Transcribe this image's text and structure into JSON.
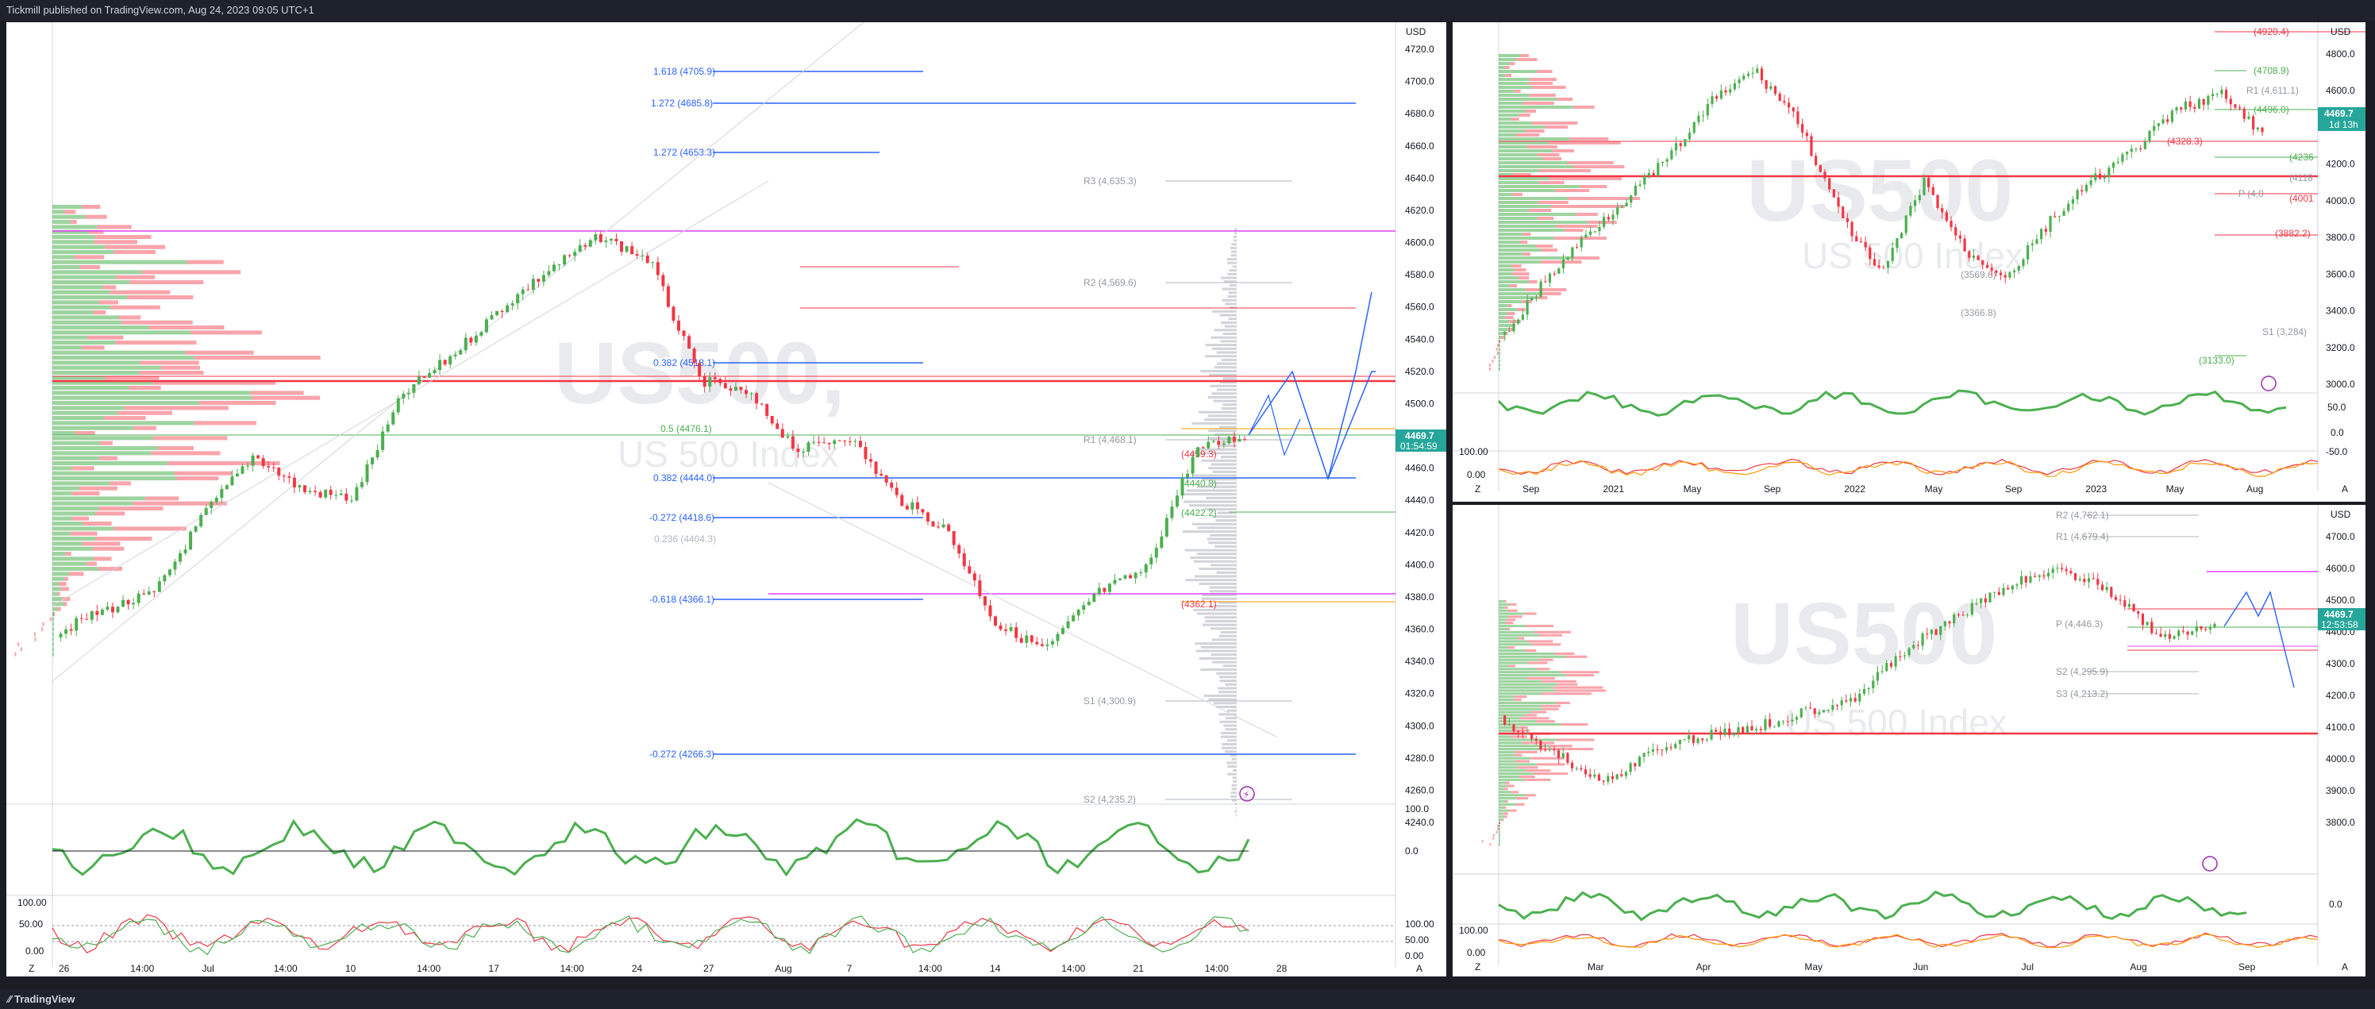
{
  "header": {
    "published": "Tickmill published on TradingView.com, Aug 24, 2023 09:05 UTC+1"
  },
  "footer": {
    "brand": "TradingView"
  },
  "colors": {
    "up": "#26a69a",
    "green": "#4caf50",
    "down": "#f23645",
    "fib_blue": "#2962ff",
    "magenta": "#e040fb",
    "orange": "#ff9800"
  },
  "left_chart": {
    "currency": "USD",
    "symbol_watermark": "US500,",
    "name_watermark": "US 500 Index",
    "last_price": "4469.7",
    "countdown": "01:54:59",
    "price_axis": [
      "4720.0",
      "4700.0",
      "4680.0",
      "4660.0",
      "4640.0",
      "4620.0",
      "4600.0",
      "4580.0",
      "4560.0",
      "4540.0",
      "4520.0",
      "4500.0",
      "4480.0",
      "4460.0",
      "4440.0",
      "4420.0",
      "4400.0",
      "4380.0",
      "4360.0",
      "4340.0",
      "4320.0",
      "4300.0",
      "4280.0",
      "4260.0",
      "4240.0"
    ],
    "osc_axis": [
      "100.0",
      "0.0"
    ],
    "stoch_axis": [
      "100.00",
      "50.00",
      "0.00"
    ],
    "time_axis": [
      "26",
      "14:00",
      "Jul",
      "14:00",
      "10",
      "14:00",
      "17",
      "14:00",
      "24",
      "27",
      "Aug",
      "7",
      "14:00",
      "14",
      "14:00",
      "21",
      "14:00",
      "28"
    ],
    "fib_labels": [
      "1.618 (4705.9)",
      "1.272 (4685.8)",
      "1.272 (4653.3)",
      "0.382 (4518.1)",
      "0.382 (4444.0)",
      "-0.272 (4418.6)",
      "-0.618 (4366.1)",
      "-0.272 (4266.3)"
    ],
    "pivot_labels": [
      "R3 (4,635.3)",
      "R2 (4,569.6)",
      "R1 (4,468.1)",
      "S1 (4,300.9)",
      "S2 (4,235.2)"
    ],
    "small_labels": [
      "(4459.3)",
      "(4440.8)",
      "(4422.2)",
      "(4362.1)",
      "0.5 (4476.1)",
      "0.382 (4518.1)",
      "0.236 (4404.3)"
    ],
    "bottom_buttons": [
      "Z",
      "A"
    ]
  },
  "top_right_chart": {
    "currency": "USD",
    "symbol_watermark": "US500",
    "name_watermark": "US 500 Index",
    "last_price": "4469.7",
    "countdown": "1d 13h",
    "price_axis": [
      "4800.0",
      "4600.0",
      "4400.0",
      "4200.0",
      "4000.0",
      "3800.0",
      "3600.0",
      "3400.0",
      "3200.0",
      "3000.0"
    ],
    "osc_axis": [
      "50.0",
      "0.0",
      "-50.0"
    ],
    "stoch_axis": [
      "100.00",
      "0.00"
    ],
    "time_axis": [
      "Sep",
      "2021",
      "May",
      "Sep",
      "2022",
      "May",
      "Sep",
      "2023",
      "May",
      "Aug"
    ],
    "level_labels": [
      "(4920.4)",
      "(4708.9)",
      "R1 (4,611.1)",
      "(4496.0)",
      "(4328.3)",
      "(4236",
      "P (4,0",
      "(3882.2)",
      "(3569.6)",
      "(3366.8)",
      "S1 (3,284)",
      "(3133.0)",
      "(4118",
      "(4001"
    ],
    "bottom_buttons": [
      "Z",
      "A"
    ]
  },
  "bottom_right_chart": {
    "currency": "USD",
    "symbol_watermark": "US500",
    "name_watermark": "US 500 Index",
    "last_price": "4469.7",
    "countdown": "12:53:58",
    "price_axis": [
      "4700.0",
      "4600.0",
      "4500.0",
      "4400.0",
      "4300.0",
      "4200.0",
      "4100.0",
      "4000.0",
      "3900.0",
      "3800.0"
    ],
    "osc_axis": [
      "0.0"
    ],
    "stoch_axis": [
      "100.00",
      "0.00"
    ],
    "time_axis": [
      "Mar",
      "Apr",
      "May",
      "Jun",
      "Jul",
      "Aug",
      "Sep"
    ],
    "pivot_labels": [
      "R2 (4,762.1)",
      "R1 (4,679.4)",
      "P (4,446.3)",
      "S2 (4,295.9)",
      "S3 (4,213.2)"
    ],
    "bottom_buttons": [
      "Z",
      "A"
    ]
  }
}
